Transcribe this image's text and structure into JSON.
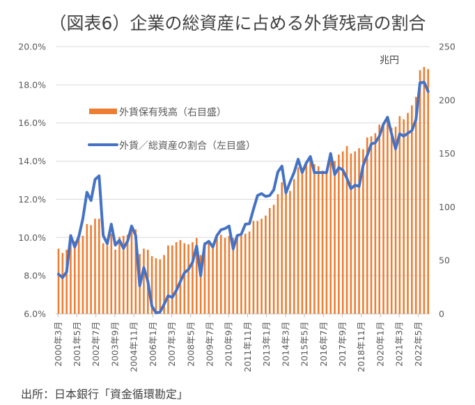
{
  "chart_data": {
    "type": "bar+line",
    "title": "（図表6）企業の総資産に占める外貨残高の割合",
    "unit_right": "兆円",
    "source": "出所：日本銀行「資金循環勘定」",
    "colors": {
      "bar": "#ED7D31",
      "line": "#4472C4",
      "grid": "#D9D9D9"
    },
    "left_axis": {
      "min": 6,
      "max": 20,
      "step": 2,
      "tick_labels": [
        "6.0%",
        "8.0%",
        "10.0%",
        "12.0%",
        "14.0%",
        "16.0%",
        "18.0%",
        "20.0%"
      ]
    },
    "right_axis": {
      "min": 0,
      "max": 250,
      "step": 50,
      "tick_labels": [
        "0",
        "50",
        "100",
        "150",
        "200",
        "250"
      ]
    },
    "x_tick_labels": [
      "2000年3月",
      "2001年5月",
      "2002年7月",
      "2003年9月",
      "2004年11月",
      "2006年1月",
      "2007年3月",
      "2008年5月",
      "2009年7月",
      "2010年9月",
      "2011年11月",
      "2013年1月",
      "2014年3月",
      "2015年5月",
      "2016年7月",
      "2017年9月",
      "2018年11月",
      "2020年1月",
      "2021年3月",
      "2022年5月"
    ],
    "x_range": "2000Q1-2022Q4 (quarterly)",
    "legend": [
      {
        "name": "外貨保有残高（右目盛）",
        "kind": "bar"
      },
      {
        "name": "外貨／総資産の割合（左目盛）",
        "kind": "line"
      }
    ],
    "legend_position": "upper-left inside plot",
    "grid": true,
    "series": [
      {
        "name": "外貨保有残高（右目盛）",
        "axis": "right",
        "type": "bar",
        "values": [
          61,
          57,
          60,
          67,
          68,
          73,
          73,
          84,
          83,
          89,
          89,
          66,
          64,
          75,
          60,
          72,
          73,
          74,
          79,
          79,
          56,
          61,
          60,
          54,
          52,
          51,
          55,
          64,
          64,
          67,
          69,
          66,
          65,
          67,
          71,
          55,
          67,
          66,
          63,
          72,
          74,
          71,
          73,
          71,
          71,
          73,
          75,
          77,
          87,
          87,
          89,
          92,
          99,
          102,
          112,
          123,
          112,
          115,
          126,
          137,
          136,
          140,
          145,
          140,
          138,
          134,
          132,
          148,
          143,
          149,
          152,
          157,
          150,
          152,
          155,
          154,
          165,
          166,
          169,
          177,
          178,
          182,
          174,
          175,
          185,
          182,
          188,
          195,
          203,
          228,
          231,
          229
        ]
      },
      {
        "name": "外貨／総資産の割合（左目盛）",
        "axis": "left",
        "type": "line",
        "unit": "%",
        "values": [
          8.08,
          7.9,
          8.2,
          10.1,
          9.5,
          10.05,
          11.0,
          12.37,
          11.94,
          13.04,
          13.23,
          10.1,
          9.67,
          10.7,
          9.6,
          9.86,
          9.43,
          9.8,
          10.6,
          10.1,
          7.47,
          8.42,
          7.7,
          6.4,
          6.05,
          6.1,
          6.5,
          6.95,
          6.86,
          7.22,
          7.7,
          8.15,
          8.33,
          8.7,
          9.55,
          8.0,
          9.65,
          9.8,
          9.5,
          10.1,
          10.4,
          10.47,
          10.6,
          9.4,
          10.1,
          10.17,
          10.7,
          10.72,
          11.48,
          12.2,
          12.3,
          12.15,
          12.2,
          12.5,
          13.43,
          13.74,
          12.34,
          12.9,
          13.4,
          14.1,
          13.4,
          13.9,
          14.24,
          13.4,
          13.4,
          13.4,
          13.4,
          14.4,
          13.3,
          13.66,
          13.54,
          13.1,
          12.56,
          12.74,
          12.68,
          13.78,
          14.3,
          14.9,
          14.97,
          15.31,
          15.93,
          16.3,
          15.43,
          14.64,
          15.43,
          15.31,
          15.46,
          15.6,
          16.17,
          18.1,
          18.14,
          17.65
        ]
      }
    ]
  }
}
